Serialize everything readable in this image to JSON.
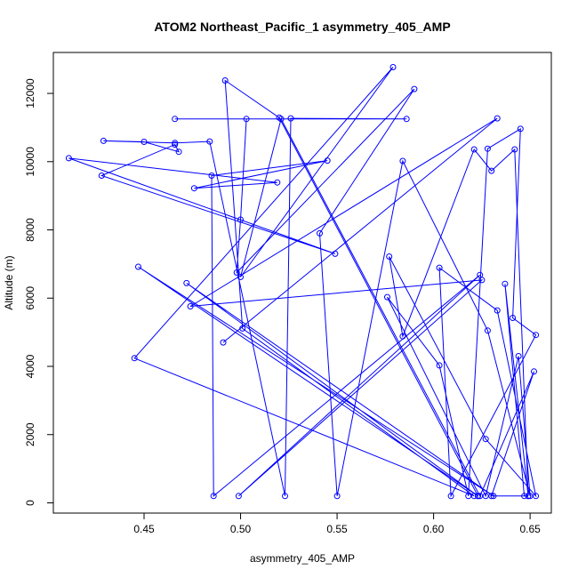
{
  "chart_data": {
    "type": "line",
    "title": "ATOM2 Northeast_Pacific_1 asymmetry_405_AMP",
    "xlabel": "asymmetry_405_AMP",
    "ylabel": "Altitude (m)",
    "xlim": [
      0.403,
      0.661
    ],
    "ylim": [
      -300,
      13200
    ],
    "xticks": [
      0.45,
      0.5,
      0.55,
      0.6,
      0.65
    ],
    "xtick_labels": [
      "0.45",
      "0.50",
      "0.55",
      "0.60",
      "0.65"
    ],
    "yticks": [
      0,
      2000,
      4000,
      6000,
      8000,
      10000,
      12000
    ],
    "ytick_labels": [
      "0",
      "2000",
      "4000",
      "6000",
      "8000",
      "10000",
      "12000"
    ],
    "grid": false,
    "legend": "none",
    "series": [
      {
        "color": "#0000ff",
        "x": [
          0.623,
          0.447,
          0.631,
          0.472,
          0.623,
          0.52,
          0.492,
          0.501,
          0.621,
          0.445,
          0.579,
          0.5,
          0.521,
          0.624,
          0.652,
          0.63,
          0.649,
          0.647,
          0.637,
          0.649,
          0.642,
          0.63,
          0.621,
          0.584,
          0.577,
          0.627,
          0.653,
          0.633,
          0.603,
          0.609,
          0.653,
          0.641,
          0.645,
          0.628,
          0.618,
          0.603,
          0.576,
          0.627,
          0.644,
          0.65,
          0.628,
          0.584,
          0.55,
          0.541,
          0.59,
          0.498,
          0.5,
          0.503,
          0.466,
          0.586,
          0.526,
          0.523,
          0.484,
          0.466,
          0.429,
          0.45,
          0.468,
          0.466,
          0.428,
          0.549,
          0.411,
          0.519,
          0.476,
          0.545,
          0.485,
          0.486,
          0.624,
          0.499,
          0.625,
          0.474,
          0.633,
          0.491
        ],
        "y": [
          200,
          6920,
          200,
          6440,
          200,
          11290,
          12380,
          5110,
          200,
          4240,
          12770,
          6620,
          11250,
          200,
          3850,
          200,
          200,
          200,
          6420,
          200,
          10360,
          9730,
          10360,
          4880,
          7220,
          1870,
          200,
          5640,
          6890,
          200,
          4920,
          5420,
          10960,
          10380,
          200,
          4030,
          6030,
          200,
          4300,
          200,
          5050,
          10020,
          200,
          7900,
          12130,
          6750,
          8300,
          11250,
          11250,
          11250,
          11270,
          200,
          10590,
          10550,
          10610,
          10580,
          10290,
          10500,
          9590,
          7300,
          10100,
          9390,
          9220,
          10030,
          9590,
          200,
          6680,
          200,
          6530,
          5760,
          11270,
          4700
        ]
      }
    ]
  }
}
